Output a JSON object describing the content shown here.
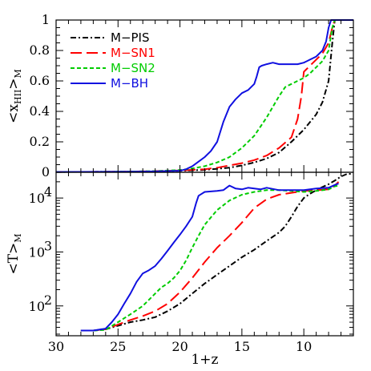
{
  "chart_data": [
    {
      "type": "line",
      "panel": "top",
      "ylabel": "<x",
      "ylabel_sub": "HII",
      "ylabel_suffix": ">",
      "ylabel_subM": "M",
      "yscale": "linear",
      "xlim": [
        30,
        6
      ],
      "ylim": [
        0,
        1
      ],
      "yticks": [
        "0",
        "0.2",
        "0.4",
        "0.6",
        "0.8",
        "1"
      ],
      "legend_position": "top-left",
      "series": [
        {
          "name": "M−PIS",
          "color": "#000000",
          "dash": "dashdot",
          "x": [
            30,
            26,
            24,
            22,
            20,
            18,
            16,
            15,
            14,
            13,
            12,
            11,
            10,
            9,
            8.5,
            8,
            7.7,
            7.5,
            6
          ],
          "y": [
            0.002,
            0.003,
            0.004,
            0.006,
            0.01,
            0.016,
            0.03,
            0.045,
            0.065,
            0.09,
            0.13,
            0.2,
            0.28,
            0.38,
            0.46,
            0.6,
            0.85,
            1.0,
            1.0
          ]
        },
        {
          "name": "M−SN1",
          "color": "#ff0000",
          "dash": "longdash",
          "x": [
            30,
            26,
            24,
            22,
            20,
            18,
            17,
            16,
            15,
            14,
            13,
            12,
            11,
            10.5,
            10.2,
            10,
            9.5,
            9,
            8.5,
            8,
            7.7,
            7.5,
            6
          ],
          "y": [
            0.002,
            0.003,
            0.005,
            0.008,
            0.012,
            0.02,
            0.03,
            0.045,
            0.06,
            0.08,
            0.11,
            0.16,
            0.23,
            0.35,
            0.5,
            0.66,
            0.7,
            0.74,
            0.78,
            0.85,
            0.95,
            1.0,
            1.0
          ]
        },
        {
          "name": "M−SN2",
          "color": "#00cc00",
          "dash": "shortdash",
          "x": [
            30,
            26,
            24,
            22,
            20,
            19,
            18,
            17,
            16,
            15,
            14,
            13.5,
            13,
            12.5,
            12,
            11.5,
            11,
            10.5,
            10,
            9.5,
            9,
            8.5,
            8,
            7.7,
            7.5,
            6
          ],
          "y": [
            0.002,
            0.003,
            0.005,
            0.008,
            0.015,
            0.025,
            0.04,
            0.065,
            0.1,
            0.16,
            0.24,
            0.3,
            0.36,
            0.43,
            0.5,
            0.56,
            0.58,
            0.6,
            0.62,
            0.65,
            0.69,
            0.73,
            0.8,
            0.95,
            1.0,
            1.0
          ]
        },
        {
          "name": "M−BH",
          "color": "#1010e0",
          "dash": "solid",
          "x": [
            30,
            26,
            24,
            22,
            20,
            19.5,
            19,
            18.5,
            18,
            17.5,
            17,
            16.5,
            16,
            15.5,
            15,
            14.5,
            14,
            13.8,
            13.6,
            13.4,
            13,
            12.5,
            12,
            11.5,
            11,
            10.5,
            10,
            9.5,
            9,
            8.5,
            8.2,
            8,
            7.8,
            6
          ],
          "y": [
            0.002,
            0.003,
            0.004,
            0.006,
            0.01,
            0.02,
            0.04,
            0.07,
            0.1,
            0.14,
            0.2,
            0.33,
            0.43,
            0.48,
            0.52,
            0.54,
            0.58,
            0.63,
            0.69,
            0.7,
            0.71,
            0.72,
            0.71,
            0.71,
            0.71,
            0.71,
            0.72,
            0.74,
            0.76,
            0.8,
            0.86,
            0.95,
            1.0,
            1.0
          ]
        }
      ]
    },
    {
      "type": "line",
      "panel": "bottom",
      "xlabel": "1+z",
      "ylabel": "<T>",
      "ylabel_subM": "M",
      "yscale": "log",
      "xlim": [
        30,
        6
      ],
      "ylim": [
        28,
        30000
      ],
      "xticks": [
        "30",
        "25",
        "20",
        "15",
        "10"
      ],
      "yticks": [
        "10",
        "10",
        "10"
      ],
      "ytick_exponents": [
        "2",
        "3",
        "4"
      ],
      "series": [
        {
          "name": "M−PIS",
          "color": "#000000",
          "dash": "dashdot",
          "x": [
            28,
            27,
            26,
            25,
            24,
            23,
            22,
            21,
            20,
            19,
            18,
            17,
            16,
            15,
            14,
            13,
            12,
            11.5,
            11,
            10.5,
            10,
            9.5,
            9,
            8.5,
            8,
            7.5,
            7,
            6.5,
            6
          ],
          "y": [
            35,
            35,
            37,
            43,
            50,
            55,
            62,
            80,
            110,
            170,
            260,
            380,
            550,
            800,
            1100,
            1600,
            2300,
            3000,
            4500,
            7000,
            10000,
            12000,
            14000,
            16000,
            18000,
            21000,
            25000,
            28000,
            28000
          ]
        },
        {
          "name": "M−SN1",
          "color": "#ff0000",
          "dash": "longdash",
          "x": [
            28,
            27,
            26,
            25,
            24,
            23,
            22,
            21,
            20,
            19,
            18,
            17,
            16,
            15,
            14,
            13,
            12,
            11,
            10,
            9,
            8,
            7.5,
            7.2
          ],
          "y": [
            35,
            35,
            37,
            45,
            55,
            65,
            80,
            110,
            180,
            330,
            650,
            1200,
            2000,
            3500,
            6500,
            9500,
            11500,
            12500,
            13500,
            14000,
            14500,
            17000,
            20000
          ]
        },
        {
          "name": "M−SN2",
          "color": "#00cc00",
          "dash": "shortdash",
          "x": [
            28,
            27,
            26,
            25,
            24,
            23,
            22,
            21.5,
            21,
            20.5,
            20,
            19.5,
            19,
            18.5,
            18,
            17,
            16,
            15,
            14,
            13,
            12,
            11,
            10,
            9,
            8,
            7.5,
            7.2
          ],
          "y": [
            35,
            35,
            36,
            50,
            70,
            100,
            170,
            220,
            260,
            330,
            450,
            700,
            1200,
            2000,
            3200,
            6000,
            9000,
            11500,
            13000,
            14000,
            14000,
            13500,
            13000,
            13500,
            14500,
            16500,
            17000
          ]
        },
        {
          "name": "M−BH",
          "color": "#1010e0",
          "dash": "solid",
          "x": [
            28,
            27,
            26,
            25.5,
            25,
            24.5,
            24,
            23.5,
            23,
            22.5,
            22,
            21.5,
            21,
            20.5,
            20,
            19.5,
            19,
            18.7,
            18.5,
            18,
            17,
            16.5,
            16,
            15.5,
            15,
            14.5,
            14,
            13.5,
            13,
            12,
            11,
            10,
            9,
            8,
            7.5,
            7.2
          ],
          "y": [
            35,
            35,
            38,
            50,
            70,
            110,
            170,
            280,
            400,
            460,
            550,
            750,
            1050,
            1500,
            2100,
            3000,
            4500,
            8000,
            11000,
            13000,
            13500,
            14000,
            17000,
            15000,
            14500,
            15500,
            15000,
            14500,
            15500,
            14000,
            14000,
            14000,
            15000,
            15500,
            17500,
            18500
          ]
        }
      ]
    }
  ]
}
